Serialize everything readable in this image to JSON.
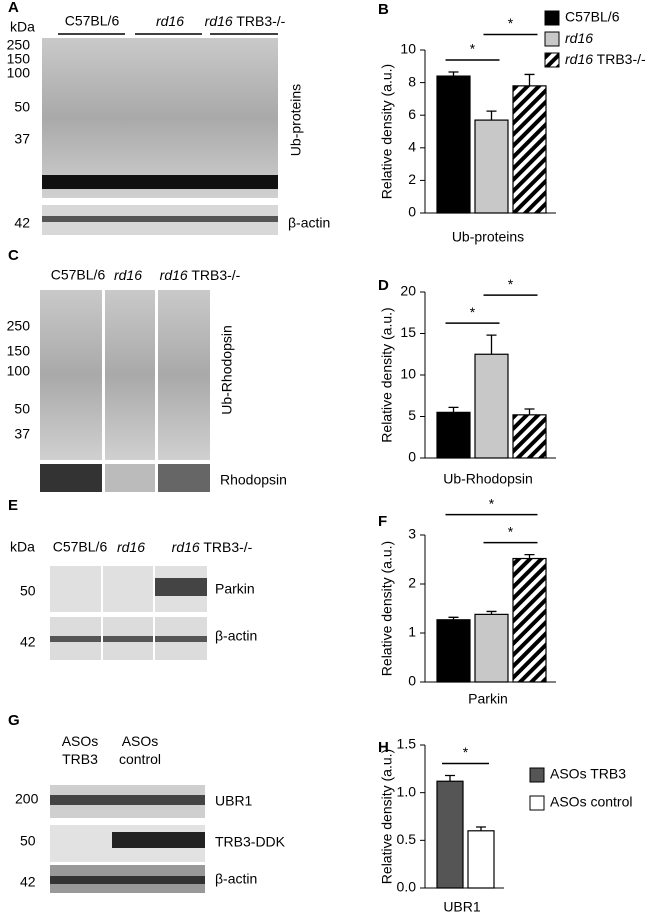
{
  "chart_data": [
    {
      "type": "bar",
      "panel": "B",
      "ylabel": "Relative density (a.u.)",
      "xlabel": "Ub-proteins",
      "values": [
        8.4,
        5.7,
        7.8
      ],
      "errors": [
        0.25,
        0.55,
        0.7
      ],
      "fills": [
        "#000000",
        "#c8c8c8",
        "hatch"
      ],
      "legend": [
        "C57BL/6",
        "rd16",
        "rd16 TRB3-/-"
      ],
      "ylim": [
        0,
        10
      ],
      "yticks": [
        0,
        2,
        4,
        6,
        8,
        10
      ],
      "significance": [
        {
          "text": "*",
          "bars": [
            0,
            1
          ]
        },
        {
          "text": "*",
          "bars": [
            1,
            2
          ]
        }
      ]
    },
    {
      "type": "bar",
      "panel": "D",
      "ylabel": "Relative density (a.u.)",
      "xlabel": "Ub-Rhodopsin",
      "values": [
        5.5,
        12.5,
        5.2
      ],
      "errors": [
        0.6,
        2.3,
        0.7
      ],
      "fills": [
        "#000000",
        "#c8c8c8",
        "hatch"
      ],
      "ylim": [
        0,
        20
      ],
      "yticks": [
        0,
        5,
        10,
        15,
        20
      ],
      "significance": [
        {
          "text": "*",
          "bars": [
            0,
            1
          ]
        },
        {
          "text": "*",
          "bars": [
            1,
            2
          ]
        }
      ]
    },
    {
      "type": "bar",
      "panel": "F",
      "ylabel": "Relative density (a.u.)",
      "xlabel": "Parkin",
      "values": [
        1.27,
        1.38,
        2.52
      ],
      "errors": [
        0.05,
        0.06,
        0.08
      ],
      "fills": [
        "#000000",
        "#c8c8c8",
        "hatch"
      ],
      "ylim": [
        0,
        3
      ],
      "yticks": [
        0,
        1,
        2,
        3
      ],
      "significance": [
        {
          "text": "*",
          "bars": [
            1,
            2
          ]
        },
        {
          "text": "*",
          "bars": [
            0,
            2
          ]
        }
      ]
    },
    {
      "type": "bar",
      "panel": "H",
      "ylabel": "Relative density (a.u.)",
      "xlabel": "UBR1",
      "values": [
        1.12,
        0.6
      ],
      "errors": [
        0.06,
        0.04
      ],
      "fills": [
        "#555555",
        "#ffffff"
      ],
      "legend": [
        "ASOs TRB3",
        "ASOs control"
      ],
      "ylim": [
        0,
        1.5
      ],
      "yticks": [
        {
          "value": 0,
          "label": "0.0"
        },
        0.5,
        {
          "value": 1,
          "label": "1.0"
        },
        1.5
      ],
      "significance": [
        {
          "text": "*",
          "bars": [
            0,
            1
          ]
        }
      ]
    }
  ],
  "blots": [
    {
      "panel": "A",
      "unit": "kDa",
      "groups": [
        "C57BL/6",
        "rd16",
        "rd16 TRB3-/-"
      ],
      "markers": [
        250,
        150,
        100,
        50,
        37,
        42
      ],
      "labels": [
        "Ub-proteins",
        "β-actin"
      ]
    },
    {
      "panel": "C",
      "groups": [
        "C57BL/6",
        "rd16",
        "rd16 TRB3-/-"
      ],
      "markers": [
        250,
        150,
        100,
        50,
        37
      ],
      "labels": [
        "Ub-Rhodopsin",
        "Rhodopsin"
      ]
    },
    {
      "panel": "E",
      "unit": "kDa",
      "groups": [
        "C57BL/6",
        "rd16",
        "rd16 TRB3-/-"
      ],
      "markers": [
        50,
        42
      ],
      "labels": [
        "Parkin",
        "β-actin"
      ]
    },
    {
      "panel": "G",
      "groups": [
        "ASOs TRB3",
        "ASOs control"
      ],
      "markers": [
        200,
        50,
        42
      ],
      "labels": [
        "UBR1",
        "TRB3-DDK",
        "β-actin"
      ]
    }
  ]
}
